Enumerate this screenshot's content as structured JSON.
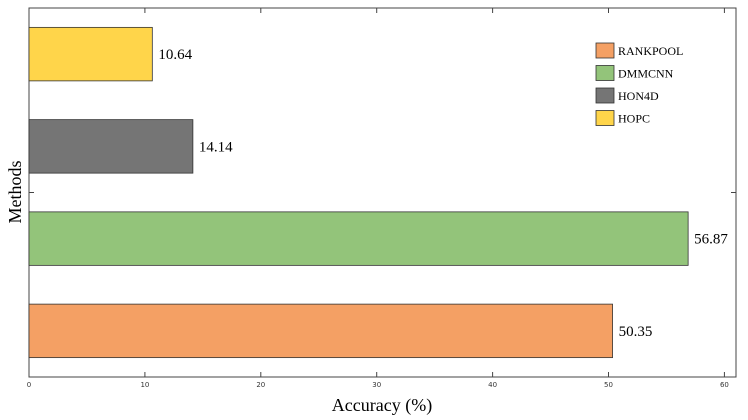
{
  "chart_data": {
    "type": "bar",
    "orientation": "horizontal",
    "categories": [
      "RANKPOOL",
      "DMMCNN",
      "HON4D",
      "HOPC"
    ],
    "values": [
      50.35,
      56.87,
      14.14,
      10.64
    ],
    "colors": [
      "#f4a064",
      "#93c47a",
      "#757575",
      "#ffd54a"
    ],
    "xlabel": "Accuracy (%)",
    "ylabel": "Methods",
    "xlim": [
      0,
      61
    ],
    "xticks": [
      0,
      10,
      20,
      30,
      40,
      50,
      60
    ],
    "legend": {
      "placement": "top-right",
      "entries": [
        "RANKPOOL",
        "DMMCNN",
        "HON4D",
        "HOPC"
      ]
    },
    "grid": false
  }
}
